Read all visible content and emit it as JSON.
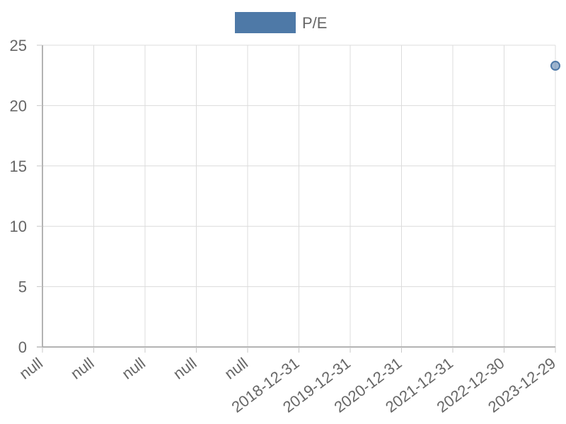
{
  "chart_data": {
    "type": "scatter",
    "categories": [
      "null",
      "null",
      "null",
      "null",
      "null",
      "2018-12-31",
      "2019-12-31",
      "2020-12-31",
      "2021-12-31",
      "2022-12-30",
      "2023-12-29"
    ],
    "series": [
      {
        "name": "P/E",
        "values": [
          null,
          null,
          null,
          null,
          null,
          null,
          null,
          null,
          null,
          null,
          23.3
        ],
        "color": "#4e79a7"
      }
    ],
    "ylim": [
      0,
      25
    ],
    "yticks": [
      0,
      5,
      10,
      15,
      20,
      25
    ],
    "grid": true,
    "legend_position": "top-center"
  }
}
